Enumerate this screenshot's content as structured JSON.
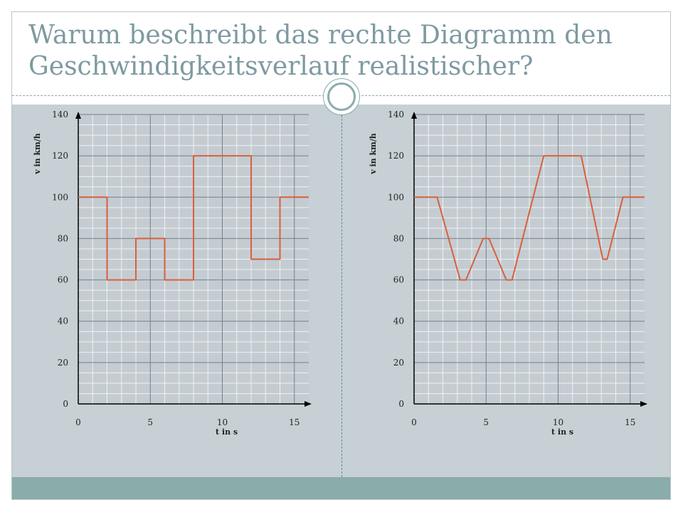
{
  "slide": {
    "title_lines": [
      "Warum beschreibt das rechte Diagramm den",
      "Geschwindigkeitsverlauf realistischer?"
    ]
  },
  "colors": {
    "title": "#7e9aa1",
    "content_bg": "#c6d0d5",
    "footer_bar": "#8aacaa",
    "plot_bg": "#c4ccd2",
    "grid_minor": "#eef1f3",
    "grid_major": "#74808a",
    "series_line": "#d9603b"
  },
  "chart_data": [
    {
      "type": "line",
      "xlabel": "t in s",
      "ylabel": "v in km/h",
      "xlim": [
        0,
        16
      ],
      "ylim": [
        0,
        140
      ],
      "xticks": [
        0,
        5,
        10,
        15
      ],
      "yticks": [
        0,
        20,
        40,
        60,
        80,
        100,
        120,
        140
      ],
      "grid": true,
      "series": [
        {
          "x": [
            0,
            2,
            2,
            4,
            4,
            6,
            6,
            8,
            8,
            12,
            12,
            14,
            14,
            16
          ],
          "y": [
            100,
            100,
            60,
            60,
            80,
            80,
            60,
            60,
            120,
            120,
            70,
            70,
            100,
            100
          ]
        }
      ]
    },
    {
      "type": "line",
      "xlabel": "t in s",
      "ylabel": "v in km/h",
      "xlim": [
        0,
        16
      ],
      "ylim": [
        0,
        140
      ],
      "xticks": [
        0,
        5,
        10,
        15
      ],
      "yticks": [
        0,
        20,
        40,
        60,
        80,
        100,
        120,
        140
      ],
      "grid": true,
      "series": [
        {
          "x": [
            0,
            1.6,
            3.2,
            3.6,
            4.8,
            5.2,
            6.4,
            6.8,
            9,
            11.6,
            13.1,
            13.4,
            14.5,
            16
          ],
          "y": [
            100,
            100,
            60,
            60,
            80,
            80,
            60,
            60,
            120,
            120,
            70,
            70,
            100,
            100
          ]
        }
      ]
    }
  ]
}
